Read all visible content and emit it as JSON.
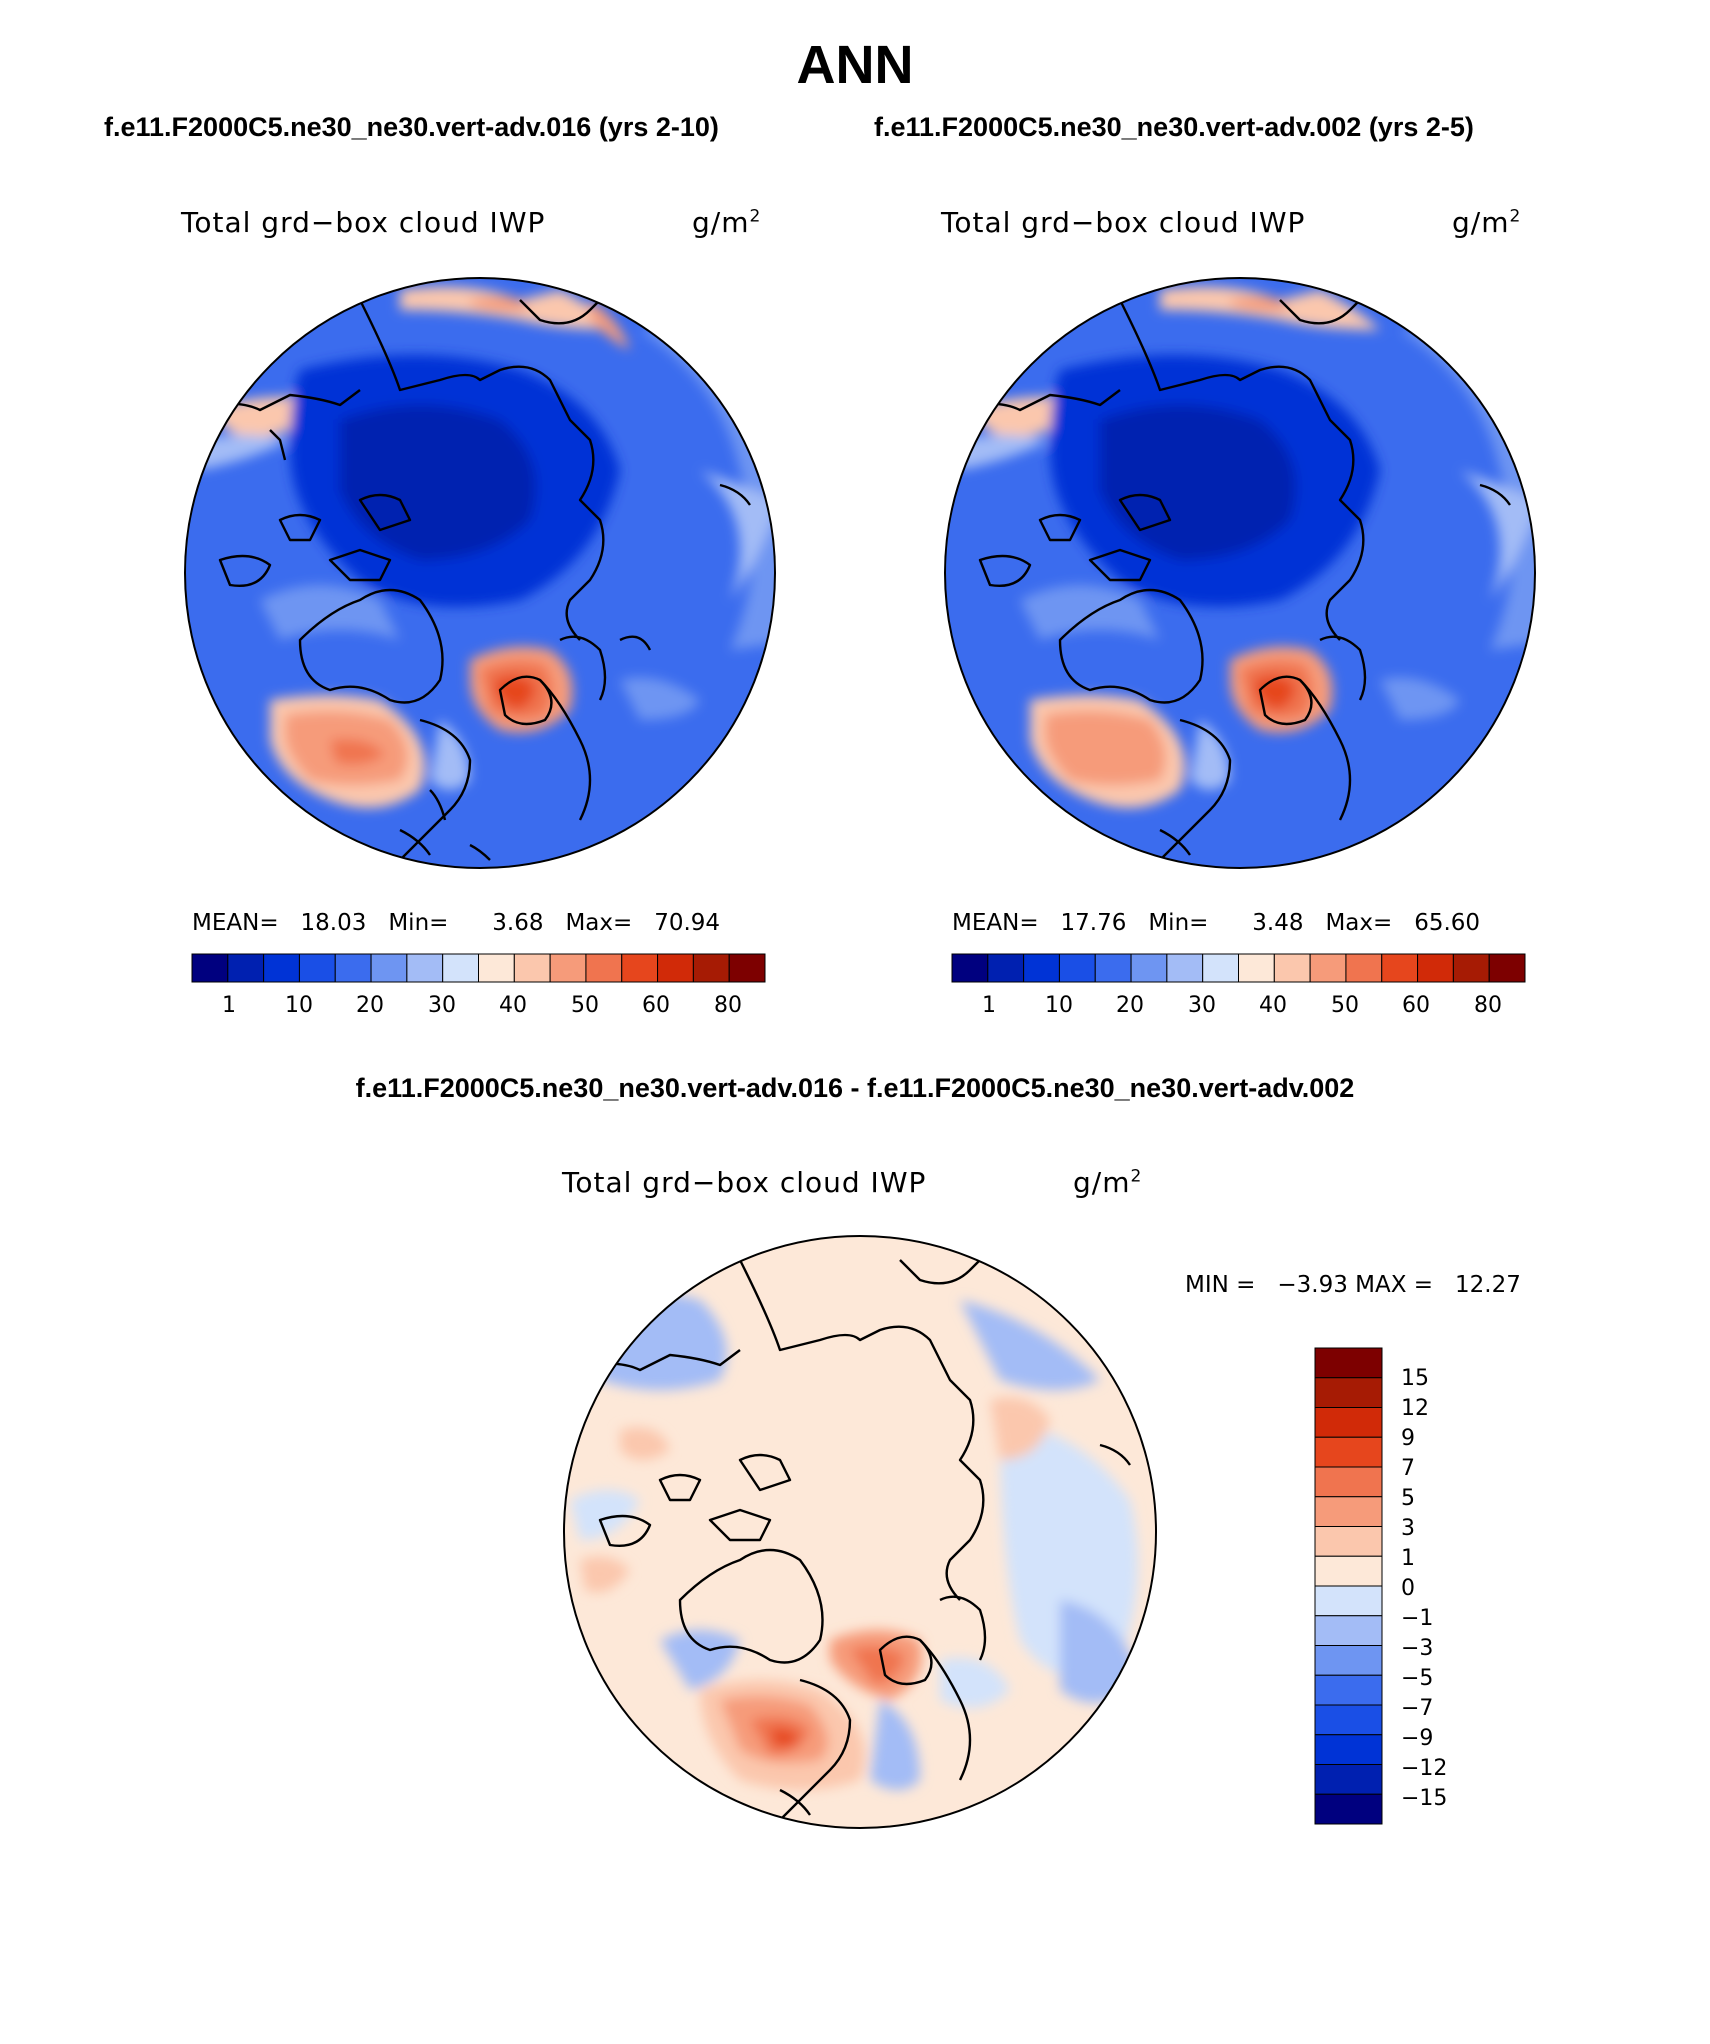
{
  "page_title": "ANN",
  "panels": [
    {
      "case_title": "f.e11.F2000C5.ne30_ne30.vert-adv.016 (yrs 2-10)",
      "field_label": "Total grd−box cloud IWP",
      "units": "g/m",
      "units_exp": "2",
      "stats": {
        "mean_label": "MEAN=",
        "mean": "18.03",
        "min_label": "Min=",
        "min": "3.68",
        "max_label": "Max=",
        "max": "70.94"
      },
      "colorbar_ticks": [
        "1",
        "10",
        "20",
        "30",
        "40",
        "50",
        "60",
        "80"
      ]
    },
    {
      "case_title": "f.e11.F2000C5.ne30_ne30.vert-adv.002 (yrs 2-5)",
      "field_label": "Total grd−box cloud IWP",
      "units": "g/m",
      "units_exp": "2",
      "stats": {
        "mean_label": "MEAN=",
        "mean": "17.76",
        "min_label": "Min=",
        "min": "3.48",
        "max_label": "Max=",
        "max": "65.60"
      },
      "colorbar_ticks": [
        "1",
        "10",
        "20",
        "30",
        "40",
        "50",
        "60",
        "80"
      ]
    }
  ],
  "difference": {
    "title": "f.e11.F2000C5.ne30_ne30.vert-adv.016 - f.e11.F2000C5.ne30_ne30.vert-adv.002",
    "field_label": "Total grd−box cloud IWP",
    "units": "g/m",
    "units_exp": "2",
    "minmax": {
      "min_label": "MIN =",
      "min": "−3.93",
      "max_label": "MAX =",
      "max": "12.27"
    },
    "colorbar_ticks": [
      "15",
      "12",
      "9",
      "7",
      "5",
      "3",
      "1",
      "0",
      "−1",
      "−3",
      "−5",
      "−7",
      "−9",
      "−12",
      "−15"
    ]
  },
  "colors": {
    "abs_scale": [
      "#00007f",
      "#0020b0",
      "#0033d6",
      "#1a4fe6",
      "#3b6cee",
      "#6e95f2",
      "#a3bcf6",
      "#d3e3fb",
      "#fde8d8",
      "#fbc7ad",
      "#f69b7a",
      "#f0744f",
      "#e6461d",
      "#d12a08",
      "#a61b04",
      "#7d0000"
    ],
    "diff_scale": [
      "#7d0000",
      "#a61b04",
      "#d12a08",
      "#e6461d",
      "#f0744f",
      "#f69b7a",
      "#fbc7ad",
      "#fde8d8",
      "#d3e3fb",
      "#a3bcf6",
      "#6e95f2",
      "#3b6cee",
      "#1a4fe6",
      "#0033d6",
      "#0020b0",
      "#00007f"
    ]
  }
}
